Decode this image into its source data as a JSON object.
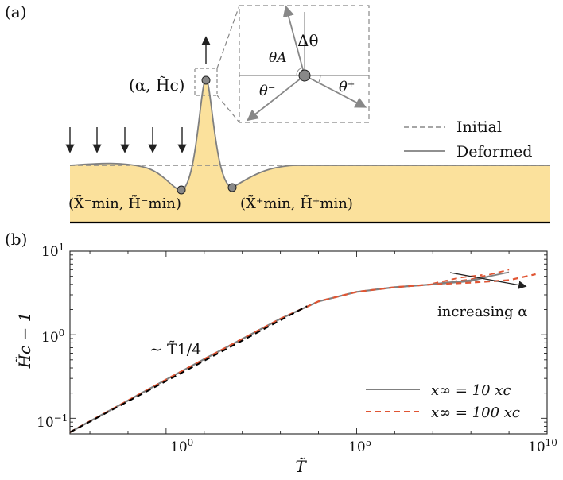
{
  "panel_a": {
    "label": "(a)",
    "legend": {
      "initial": "Initial",
      "deformed": "Deformed"
    },
    "apex_label": "(α, H̃c)",
    "left_min_label": "(X̃⁻min, H̃⁻min)",
    "right_min_label": "(X̃⁺min, H̃⁺min)",
    "inset": {
      "delta_theta": "Δθ",
      "theta_a": "θA",
      "theta_minus": "θ⁻",
      "theta_plus": "θ⁺"
    },
    "colors": {
      "film": "#fbe19c",
      "line": "#808080"
    }
  },
  "panel_b": {
    "label": "(b)",
    "power_law_label": "∼ T̃1/4",
    "arrow_label": "increasing α",
    "colors": {
      "ten": "#808080",
      "hundred": "#e05533",
      "power_law": "#000000"
    }
  },
  "chart_data": {
    "type": "line",
    "xlabel": "T̃",
    "ylabel": "H̃c − 1",
    "xscale": "log",
    "yscale": "log",
    "xlim": [
      0.003,
      10000000000.0
    ],
    "ylim": [
      0.065,
      10
    ],
    "x_ticks": [
      "10^0",
      "10^5",
      "10^10"
    ],
    "y_ticks": [
      "10^-1",
      "10^0",
      "10^1"
    ],
    "legend_position": "bottom-right",
    "series": [
      {
        "name": "x∞ = 10 xc",
        "style": "solid",
        "x": [
          0.003,
          0.01,
          0.1,
          1,
          10,
          100,
          1000,
          10000,
          100000,
          1000000,
          10000000,
          100000000,
          300000000
        ],
        "y": [
          0.068,
          0.092,
          0.163,
          0.29,
          0.51,
          0.89,
          1.55,
          2.5,
          3.25,
          3.7,
          4.0,
          4.4,
          5.0
        ]
      },
      {
        "name": "x∞ = 100 xc",
        "style": "dashed",
        "x": [
          0.003,
          0.01,
          0.1,
          1,
          10,
          100,
          1000,
          10000,
          100000,
          1000000,
          10000000,
          100000000,
          1000000000,
          5000000000
        ],
        "y": [
          0.068,
          0.092,
          0.163,
          0.29,
          0.51,
          0.89,
          1.55,
          2.5,
          3.25,
          3.7,
          4.0,
          4.2,
          4.5,
          5.3
        ]
      }
    ],
    "power_law": {
      "exponent": 0.25,
      "x": [
        0.003,
        5000
      ],
      "y": [
        0.068,
        2.2
      ]
    },
    "spread_curves": [
      {
        "style": "dashed",
        "x": [
          10000000,
          100000000,
          1000000000
        ],
        "y": [
          4.05,
          4.6,
          6.0
        ]
      },
      {
        "style": "solid",
        "x": [
          10000000,
          100000000,
          1000000000
        ],
        "y": [
          4.05,
          4.5,
          5.6
        ]
      },
      {
        "style": "dashed",
        "x": [
          10000000,
          50000000,
          200000000
        ],
        "y": [
          4.1,
          4.8,
          5.2
        ]
      }
    ]
  }
}
